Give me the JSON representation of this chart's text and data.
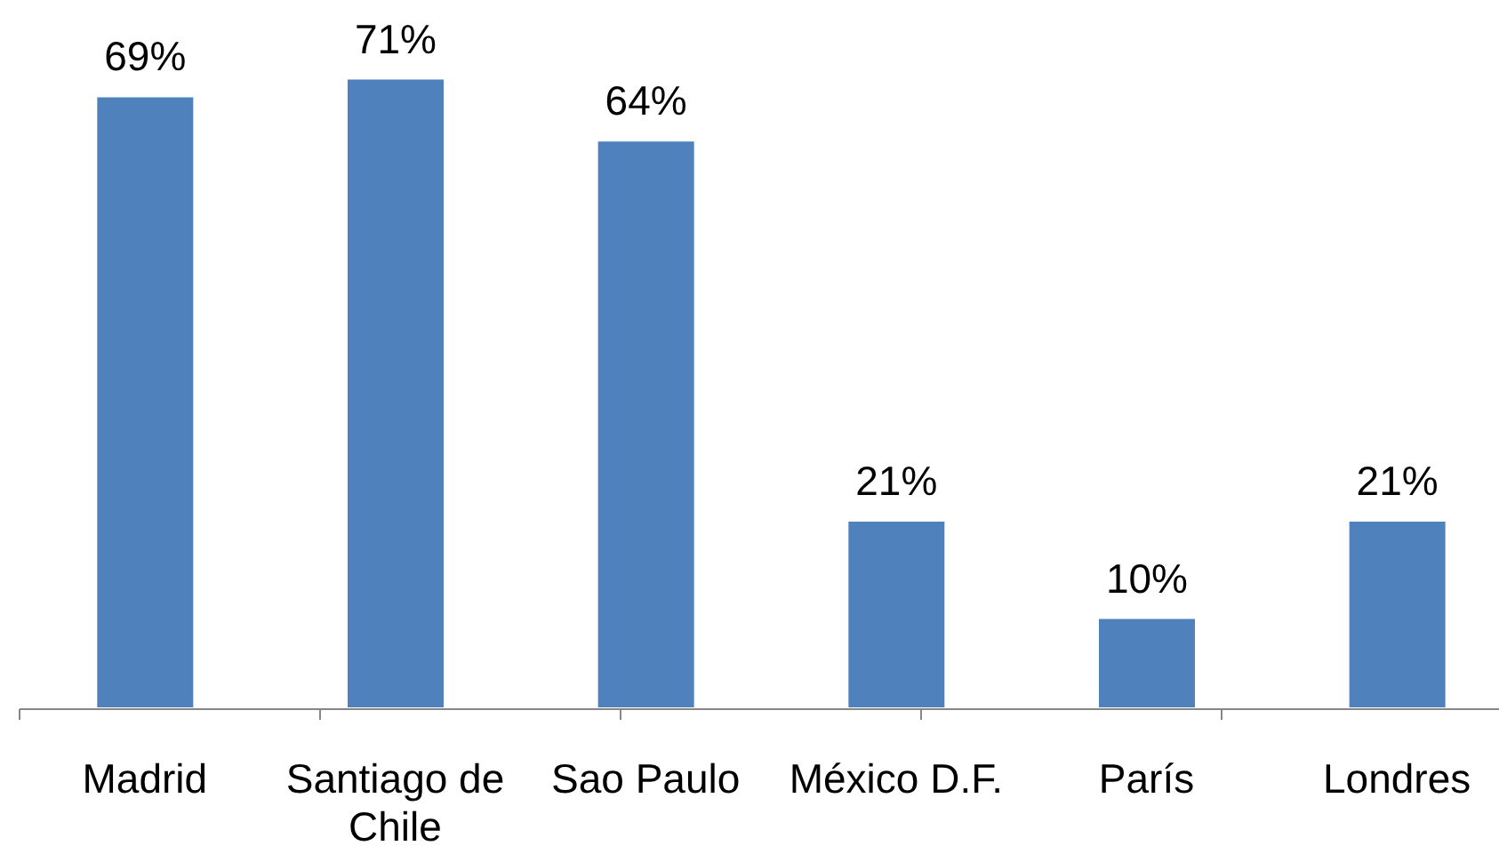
{
  "chart_data": {
    "type": "bar",
    "categories": [
      "Madrid",
      "Santiago de Chile",
      "Sao Paulo",
      "México D.F.",
      "París",
      "Londres"
    ],
    "values": [
      69,
      71,
      64,
      21,
      10,
      21
    ],
    "value_labels": [
      "69%",
      "71%",
      "64%",
      "21%",
      "10%",
      "21%"
    ],
    "color": "#4f81bd",
    "tick_labels": "x"
  }
}
